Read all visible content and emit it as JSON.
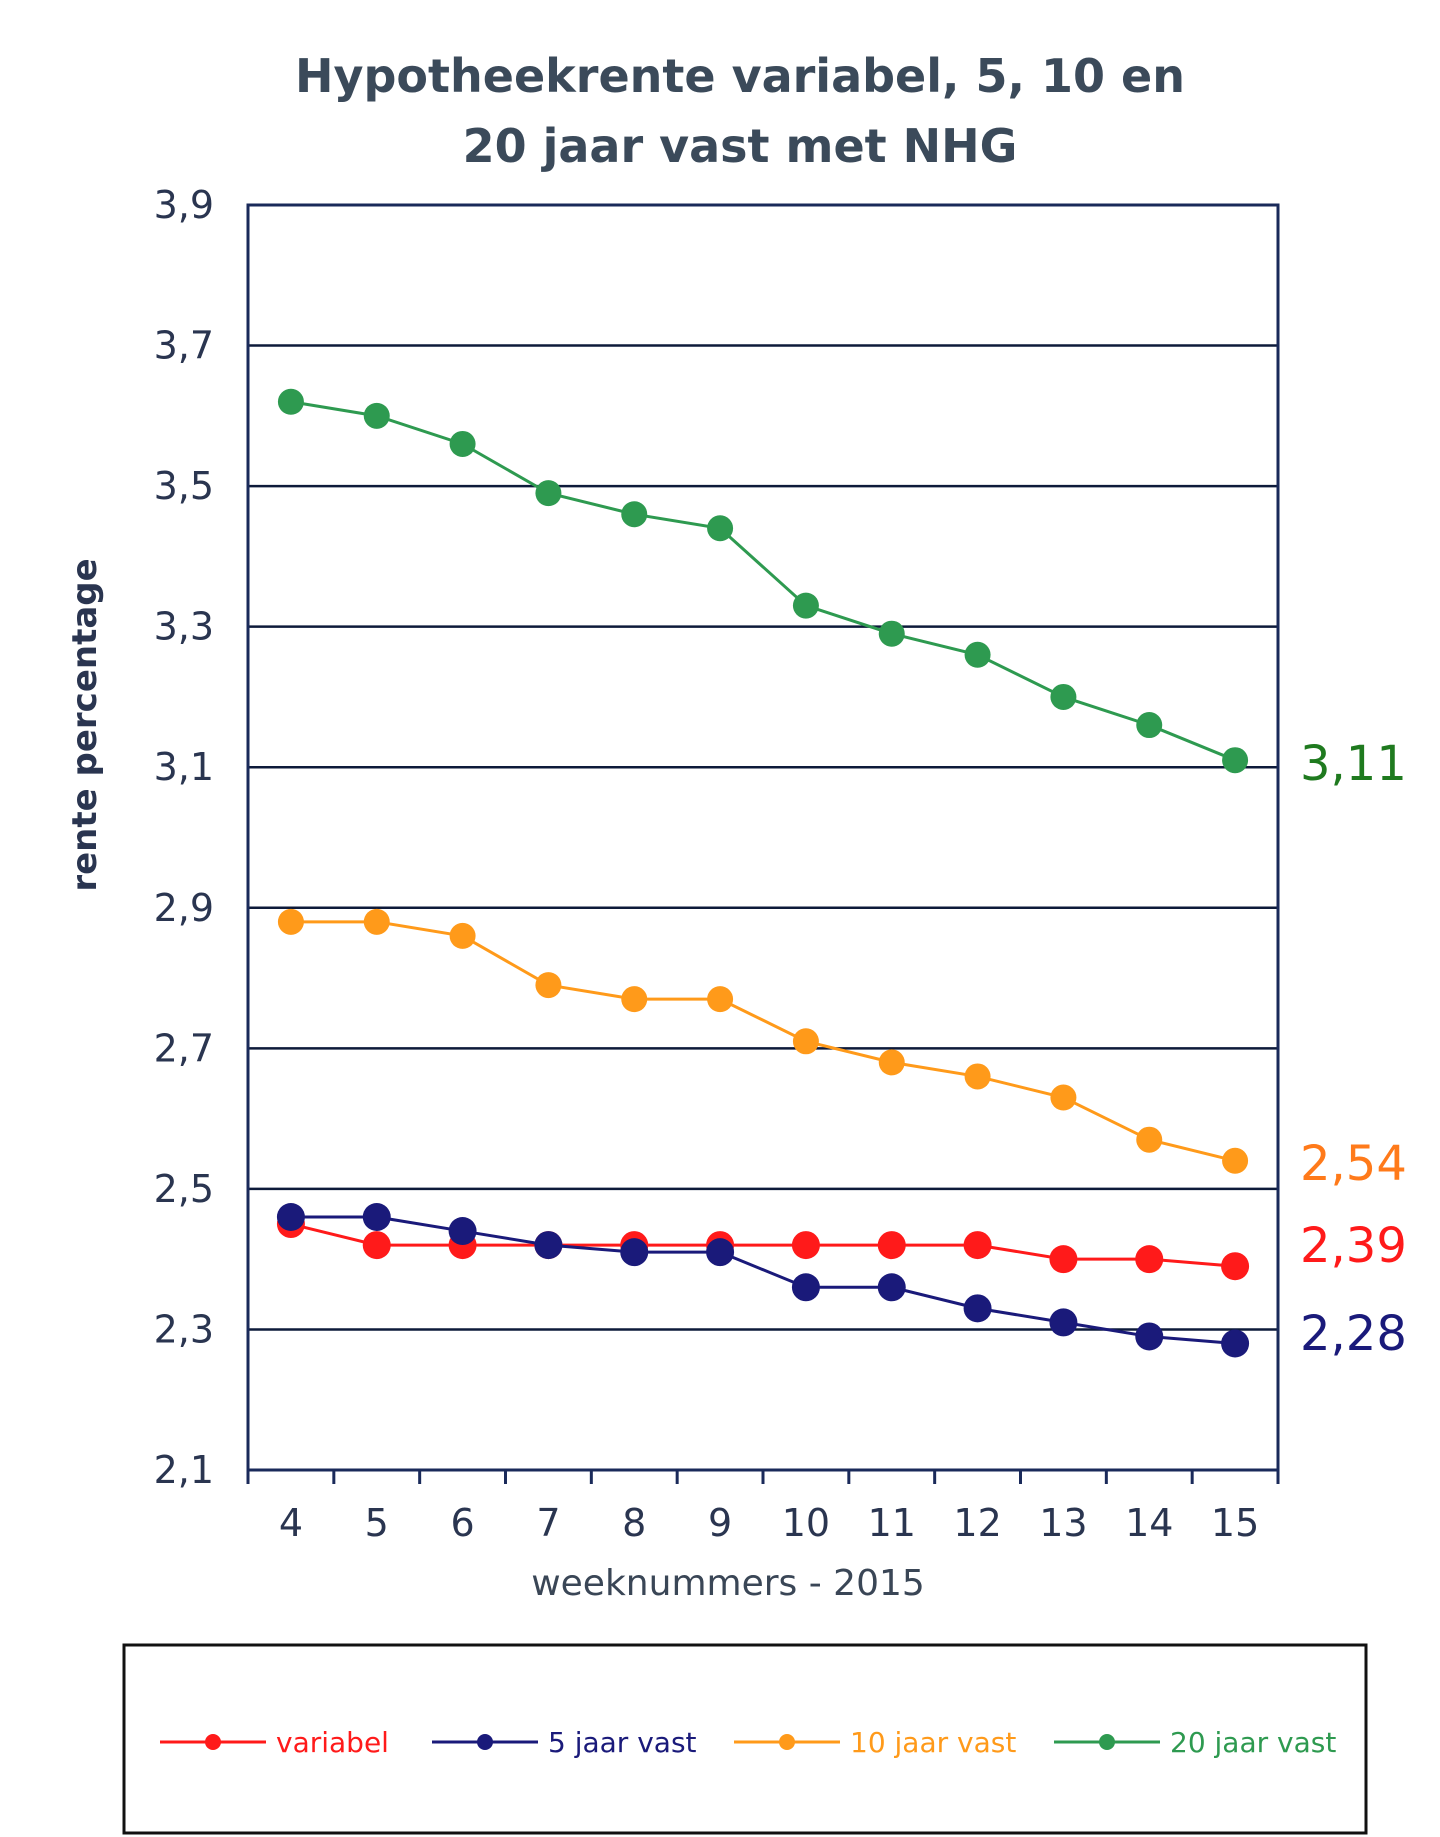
{
  "chart_data": {
    "type": "line",
    "title_lines": [
      "Hypotheekrente variabel, 5, 10 en",
      "20 jaar vast met NHG"
    ],
    "xlabel": "weeknummers - 2015",
    "ylabel": "rente percentage",
    "categories": [
      "4",
      "5",
      "6",
      "7",
      "8",
      "9",
      "10",
      "11",
      "12",
      "13",
      "14",
      "15"
    ],
    "ylim": [
      2.1,
      3.9
    ],
    "y_ticks": [
      "2,1",
      "2,3",
      "2,5",
      "2,7",
      "2,9",
      "3,1",
      "3,3",
      "3,5",
      "3,7",
      "3,9"
    ],
    "grid": true,
    "legend_position": "bottom",
    "series": [
      {
        "name": "variabel",
        "color": "#ff1a1a",
        "values": [
          2.45,
          2.42,
          2.42,
          2.42,
          2.42,
          2.42,
          2.42,
          2.42,
          2.42,
          2.4,
          2.4,
          2.39
        ]
      },
      {
        "name": "5 jaar vast",
        "color": "#1a1a7a",
        "values": [
          2.46,
          2.46,
          2.44,
          2.42,
          2.41,
          2.41,
          2.36,
          2.36,
          2.33,
          2.31,
          2.29,
          2.28
        ]
      },
      {
        "name": "10 jaar vast",
        "color": "#ff9a1a",
        "values": [
          2.88,
          2.88,
          2.86,
          2.79,
          2.77,
          2.77,
          2.71,
          2.68,
          2.66,
          2.63,
          2.57,
          2.54
        ]
      },
      {
        "name": "20 jaar vast",
        "color": "#2e9a50",
        "values": [
          3.62,
          3.6,
          3.56,
          3.49,
          3.46,
          3.44,
          3.33,
          3.29,
          3.26,
          3.2,
          3.16,
          3.11
        ]
      }
    ],
    "end_labels": [
      {
        "text": "3,11",
        "color": "#1f7a1f",
        "value": 3.11
      },
      {
        "text": "2,54",
        "color": "#ff7a1a",
        "value": 2.54
      },
      {
        "text": "2,39",
        "color": "#ff1a1a",
        "value": 2.39
      },
      {
        "text": "2,28",
        "color": "#1a1a7a",
        "value": 2.28
      }
    ],
    "legend_colors": [
      "#ff1a1a",
      "#1a1a7a",
      "#ff9a1a",
      "#2e9a50"
    ],
    "frame_color": "#1a2a5a"
  }
}
